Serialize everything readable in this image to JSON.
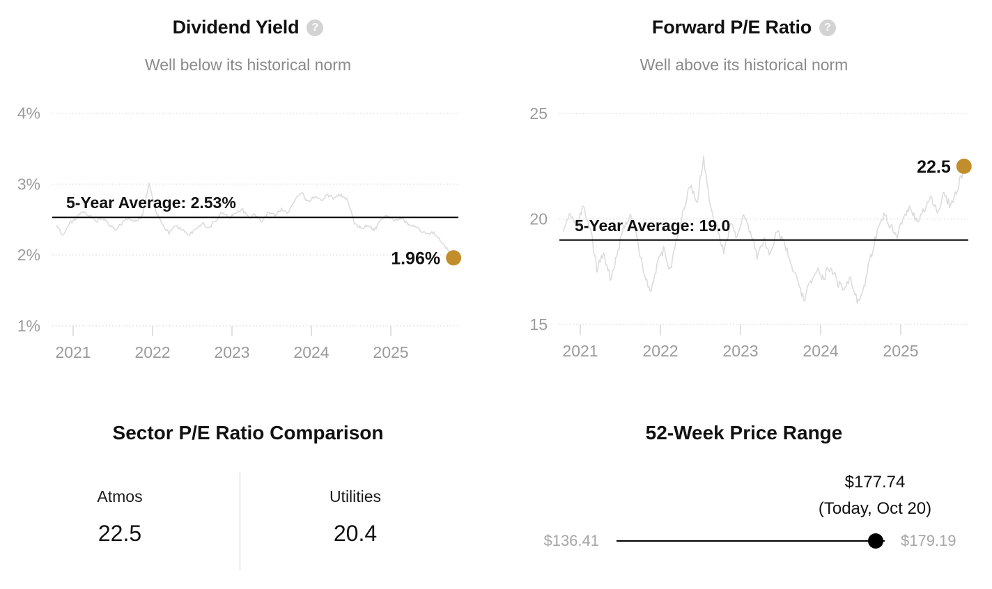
{
  "ui": {
    "help_glyph": "?"
  },
  "colors": {
    "accent_gold": "#C28E2C",
    "series_gray": "#DCDCDC",
    "grid_gray": "#D9D9D9",
    "tick_label_gray": "#9B9B9B",
    "subtitle_gray": "#8A8A8A",
    "help_icon_bg": "#D3D3D3",
    "text_black": "#111111",
    "range_label_gray": "#A6A6A6",
    "average_line": "#000000"
  },
  "sector_panel": {
    "title": "Sector P/E Ratio Comparison",
    "columns": [
      {
        "label": "Atmos",
        "value": "22.5"
      },
      {
        "label": "Utilities",
        "value": "20.4"
      }
    ]
  },
  "price_range_panel": {
    "title": "52-Week Price Range",
    "low_label": "$136.41",
    "high_label": "$179.19",
    "current_label": "$177.74",
    "current_note": "(Today, Oct 20)",
    "low_value": 136.41,
    "high_value": 179.19,
    "current_value": 177.74
  },
  "chart_data": [
    {
      "type": "line",
      "title": "Dividend Yield",
      "subtitle": "Well below its historical norm",
      "xlabel": "",
      "ylabel": "",
      "grid": "dotted horizontal",
      "legend": "none",
      "ylim": [
        1,
        4
      ],
      "yticks": [
        {
          "value": 4,
          "label": "4%"
        },
        {
          "value": 3,
          "label": "3%"
        },
        {
          "value": 2,
          "label": "2%"
        },
        {
          "value": 1,
          "label": "1%"
        }
      ],
      "xticks": [
        {
          "value": 2021,
          "label": "2021"
        },
        {
          "value": 2022,
          "label": "2022"
        },
        {
          "value": 2023,
          "label": "2023"
        },
        {
          "value": 2024,
          "label": "2024"
        },
        {
          "value": 2025,
          "label": "2025"
        }
      ],
      "average": {
        "value": 2.53,
        "label": "5-Year Average: 2.53%"
      },
      "current": {
        "value": 1.96,
        "label": "1.96%"
      },
      "series": [
        {
          "name": "Dividend Yield (monthly)",
          "x_start": 2020.79,
          "x_step": 0.083333,
          "values": [
            2.42,
            2.28,
            2.45,
            2.52,
            2.6,
            2.55,
            2.48,
            2.52,
            2.42,
            2.35,
            2.46,
            2.52,
            2.48,
            2.55,
            3.02,
            2.62,
            2.42,
            2.3,
            2.42,
            2.35,
            2.28,
            2.36,
            2.45,
            2.38,
            2.48,
            2.6,
            2.52,
            2.58,
            2.65,
            2.52,
            2.58,
            2.45,
            2.62,
            2.55,
            2.65,
            2.6,
            2.78,
            2.88,
            2.75,
            2.82,
            2.78,
            2.85,
            2.8,
            2.85,
            2.78,
            2.45,
            2.38,
            2.42,
            2.35,
            2.48,
            2.55,
            2.48,
            2.52,
            2.45,
            2.4,
            2.35,
            2.3,
            2.32,
            2.2,
            2.1,
            1.96
          ]
        }
      ]
    },
    {
      "type": "line",
      "title": "Forward P/E Ratio",
      "subtitle": "Well above its historical norm",
      "xlabel": "",
      "ylabel": "",
      "grid": "dotted horizontal",
      "legend": "none",
      "ylim": [
        15,
        25
      ],
      "yticks": [
        {
          "value": 25,
          "label": "25"
        },
        {
          "value": 20,
          "label": "20"
        },
        {
          "value": 15,
          "label": "15"
        }
      ],
      "xticks": [
        {
          "value": 2021,
          "label": "2021"
        },
        {
          "value": 2022,
          "label": "2022"
        },
        {
          "value": 2023,
          "label": "2023"
        },
        {
          "value": 2024,
          "label": "2024"
        },
        {
          "value": 2025,
          "label": "2025"
        }
      ],
      "average": {
        "value": 19.0,
        "label": "5-Year Average: 19.0"
      },
      "current": {
        "value": 22.5,
        "label": "22.5"
      },
      "series": [
        {
          "name": "Forward P/E (monthly)",
          "x_start": 2020.79,
          "x_step": 0.083333,
          "values": [
            19.4,
            20.2,
            19.8,
            20.6,
            19.6,
            17.6,
            18.4,
            17.2,
            18.2,
            19.6,
            20.3,
            19.2,
            17.4,
            16.6,
            17.8,
            18.6,
            17.6,
            19.2,
            20.4,
            21.6,
            20.8,
            22.9,
            20.6,
            19.6,
            18.4,
            19.8,
            19.2,
            20.2,
            19.4,
            18.2,
            19.0,
            18.4,
            19.4,
            19.0,
            18.0,
            17.2,
            16.2,
            17.0,
            17.6,
            17.2,
            17.8,
            17.0,
            16.6,
            17.2,
            16.1,
            16.8,
            18.2,
            19.4,
            20.2,
            19.6,
            19.2,
            20.0,
            20.6,
            19.8,
            20.4,
            21.0,
            20.4,
            21.2,
            20.6,
            21.4,
            22.5
          ]
        }
      ]
    }
  ]
}
